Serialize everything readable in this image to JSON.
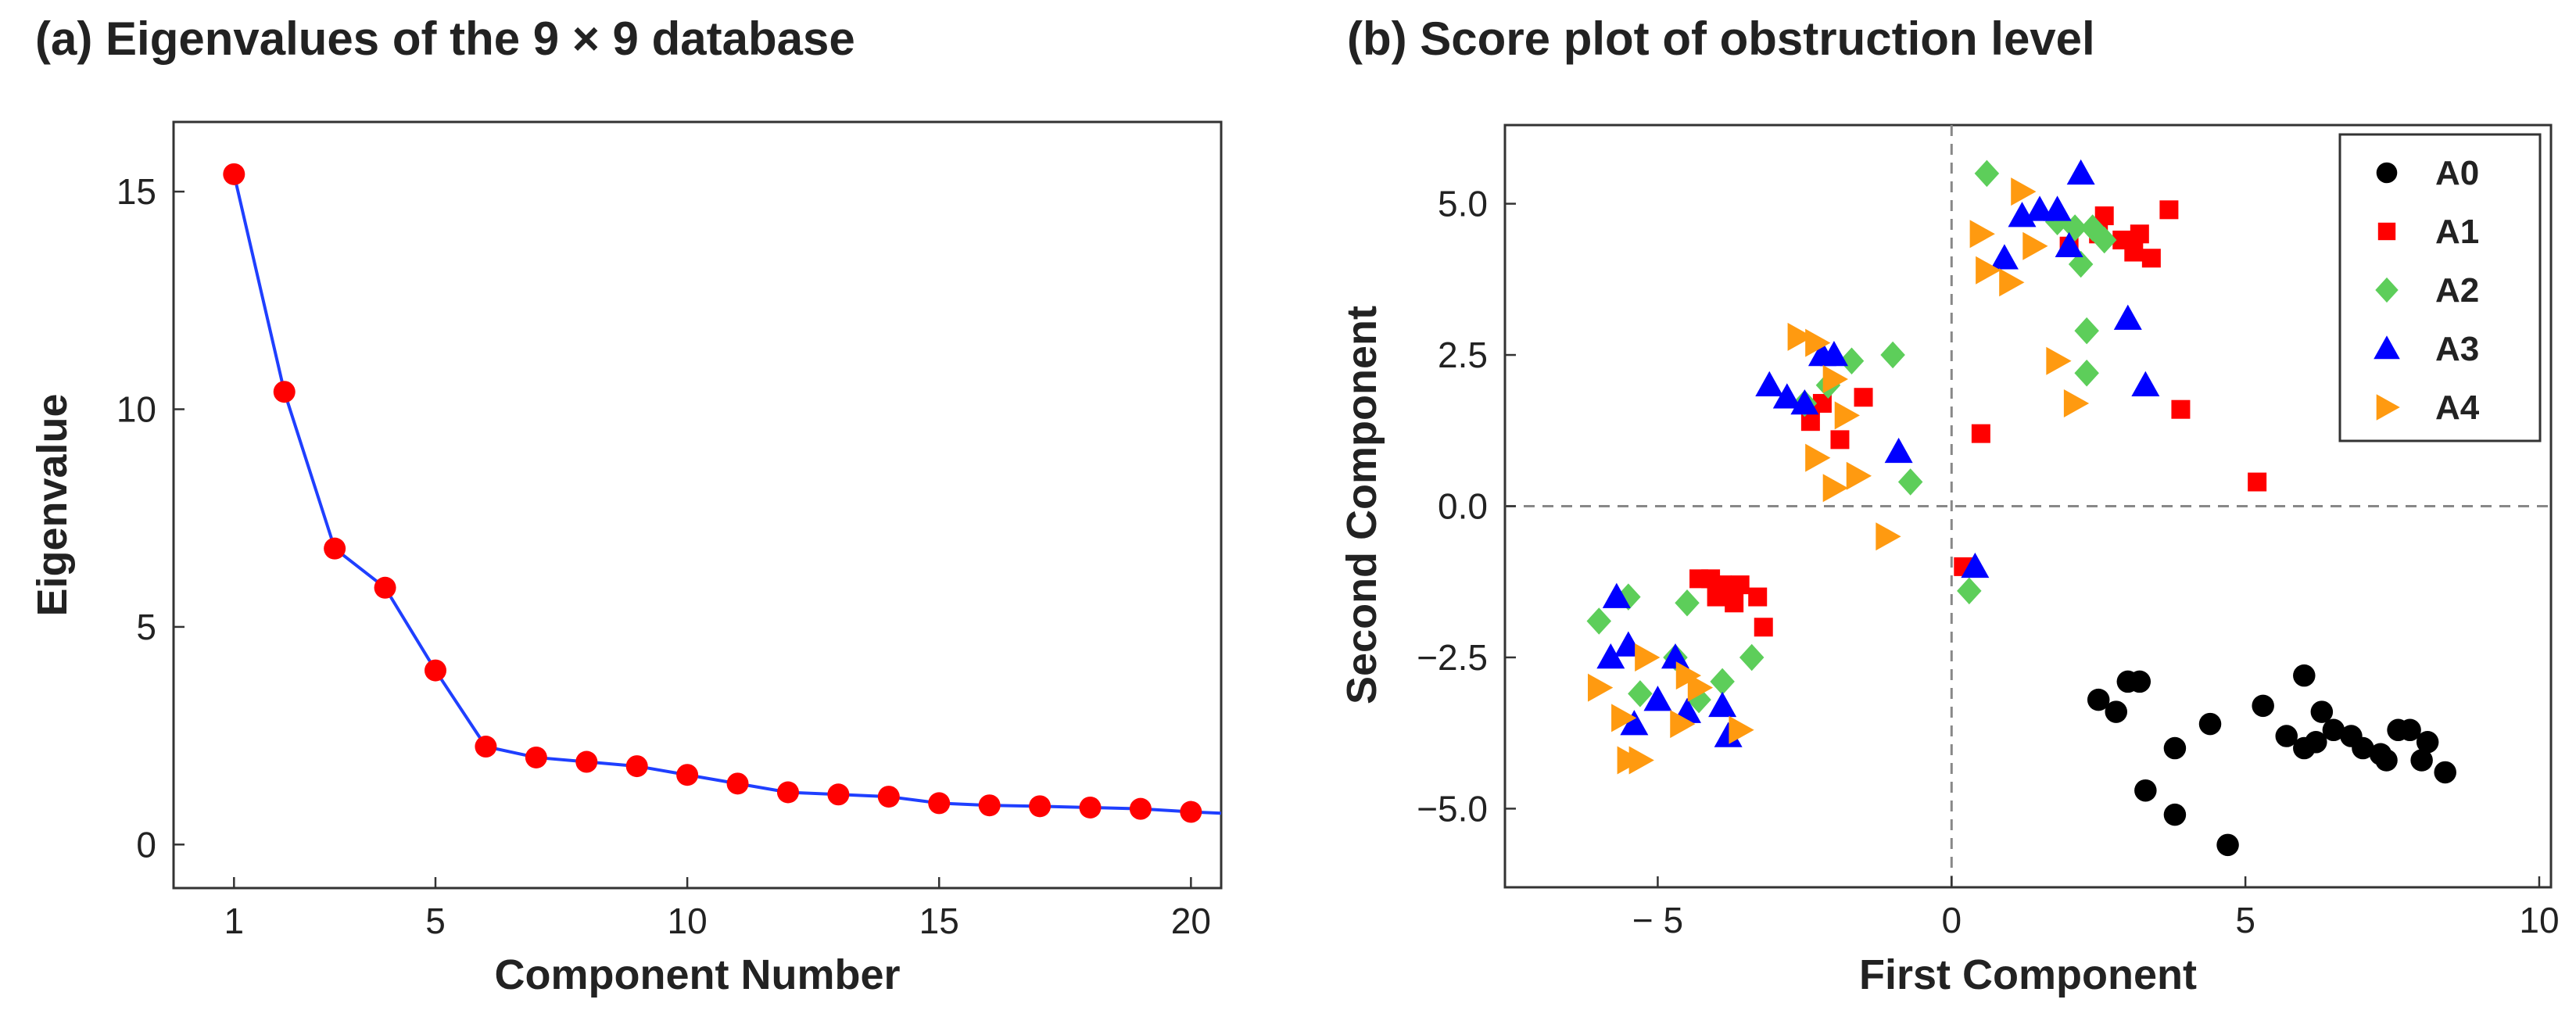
{
  "chart_data": [
    {
      "type": "line",
      "panel": "a",
      "title": "(a) Eigenvalues of the 9 × 9 database",
      "xlabel": "Component Number",
      "ylabel": "Eigenvalue",
      "xlim": [
        -0.2,
        20.6
      ],
      "ylim": [
        -1.0,
        16.6
      ],
      "xticks": [
        1,
        5,
        10,
        15,
        20
      ],
      "yticks": [
        0,
        5,
        10,
        15
      ],
      "line_color": "#1f3fff",
      "marker_color": "#ff0000",
      "x": [
        1,
        2,
        3,
        4,
        5,
        6,
        7,
        8,
        9,
        10,
        11,
        12,
        13,
        14,
        15,
        16,
        17,
        18,
        19,
        20
      ],
      "values": [
        15.4,
        10.4,
        6.8,
        5.9,
        4.0,
        2.25,
        2.0,
        1.9,
        1.8,
        1.6,
        1.4,
        1.2,
        1.15,
        1.1,
        0.95,
        0.9,
        0.88,
        0.85,
        0.82,
        0.75
      ],
      "tail_value": 0.72
    },
    {
      "type": "scatter",
      "panel": "b",
      "title": "(b) Score plot of obstruction level",
      "xlabel": "First Component",
      "ylabel": "Second Component",
      "xlim": [
        -7.6,
        10.2
      ],
      "ylim": [
        -6.3,
        6.3
      ],
      "xticks": [
        -5,
        0,
        5,
        10
      ],
      "xtick_labels": [
        "− 5",
        "0",
        "5",
        "10"
      ],
      "yticks": [
        -5.0,
        -2.5,
        0.0,
        2.5,
        5.0
      ],
      "ytick_labels": [
        "−5.0",
        "−2.5",
        "0.0",
        "2.5",
        "5.0"
      ],
      "zero_lines": true,
      "legend_position": "top-right",
      "series": [
        {
          "name": "A0",
          "marker": "circle",
          "color": "#000000",
          "points": [
            [
              2.5,
              -3.2
            ],
            [
              2.8,
              -3.4
            ],
            [
              3.0,
              -2.9
            ],
            [
              3.2,
              -2.9
            ],
            [
              3.3,
              -4.7
            ],
            [
              3.8,
              -4.0
            ],
            [
              3.8,
              -5.1
            ],
            [
              4.4,
              -3.6
            ],
            [
              4.7,
              -5.6
            ],
            [
              5.3,
              -3.3
            ],
            [
              5.7,
              -3.8
            ],
            [
              6.0,
              -2.8
            ],
            [
              6.0,
              -4.0
            ],
            [
              6.2,
              -3.9
            ],
            [
              6.3,
              -3.4
            ],
            [
              6.5,
              -3.7
            ],
            [
              6.8,
              -3.8
            ],
            [
              7.0,
              -4.0
            ],
            [
              7.3,
              -4.1
            ],
            [
              7.4,
              -4.2
            ],
            [
              7.6,
              -3.7
            ],
            [
              7.8,
              -3.7
            ],
            [
              8.0,
              -4.2
            ],
            [
              8.1,
              -3.9
            ],
            [
              8.4,
              -4.4
            ]
          ]
        },
        {
          "name": "A1",
          "marker": "square",
          "color": "#ff0000",
          "points": [
            [
              -4.3,
              -1.2
            ],
            [
              -4.1,
              -1.2
            ],
            [
              -4.0,
              -1.5
            ],
            [
              -3.9,
              -1.3
            ],
            [
              -3.6,
              -1.3
            ],
            [
              -3.7,
              -1.6
            ],
            [
              -3.2,
              -2.0
            ],
            [
              -3.3,
              -1.5
            ],
            [
              -2.4,
              1.4
            ],
            [
              -2.2,
              1.7
            ],
            [
              -1.9,
              1.1
            ],
            [
              -1.5,
              1.8
            ],
            [
              0.5,
              1.2
            ],
            [
              0.2,
              -1.0
            ],
            [
              2.0,
              4.3
            ],
            [
              2.5,
              4.5
            ],
            [
              2.6,
              4.8
            ],
            [
              2.9,
              4.4
            ],
            [
              3.1,
              4.2
            ],
            [
              3.2,
              4.5
            ],
            [
              3.7,
              4.9
            ],
            [
              3.4,
              4.1
            ],
            [
              3.9,
              1.6
            ],
            [
              5.2,
              0.4
            ]
          ]
        },
        {
          "name": "A2",
          "marker": "diamond",
          "color": "#5dce5a",
          "points": [
            [
              -6.0,
              -1.9
            ],
            [
              -5.5,
              -1.5
            ],
            [
              -5.3,
              -3.1
            ],
            [
              -4.7,
              -2.5
            ],
            [
              -4.5,
              -1.6
            ],
            [
              -4.3,
              -3.2
            ],
            [
              -3.9,
              -2.9
            ],
            [
              -3.4,
              -2.5
            ],
            [
              -2.5,
              1.7
            ],
            [
              -2.1,
              2.0
            ],
            [
              -1.7,
              2.4
            ],
            [
              -1.0,
              2.5
            ],
            [
              -0.7,
              0.4
            ],
            [
              0.3,
              -1.4
            ],
            [
              0.6,
              5.5
            ],
            [
              1.8,
              4.7
            ],
            [
              2.1,
              4.6
            ],
            [
              2.2,
              4.0
            ],
            [
              2.3,
              2.9
            ],
            [
              2.4,
              4.6
            ],
            [
              2.3,
              2.2
            ],
            [
              2.6,
              4.4
            ]
          ]
        },
        {
          "name": "A3",
          "marker": "triangle-up",
          "color": "#0000ff",
          "points": [
            [
              -5.7,
              -1.5
            ],
            [
              -5.8,
              -2.5
            ],
            [
              -5.5,
              -2.3
            ],
            [
              -5.4,
              -3.6
            ],
            [
              -5.0,
              -3.2
            ],
            [
              -4.5,
              -3.4
            ],
            [
              -4.7,
              -2.5
            ],
            [
              -3.9,
              -3.3
            ],
            [
              -3.8,
              -3.8
            ],
            [
              -3.1,
              2.0
            ],
            [
              -2.8,
              1.8
            ],
            [
              -2.5,
              1.7
            ],
            [
              -2.2,
              2.5
            ],
            [
              -2.0,
              2.5
            ],
            [
              -0.9,
              0.9
            ],
            [
              0.4,
              -1.0
            ],
            [
              0.9,
              4.1
            ],
            [
              1.2,
              4.8
            ],
            [
              1.5,
              4.9
            ],
            [
              1.8,
              4.9
            ],
            [
              2.0,
              4.3
            ],
            [
              2.2,
              5.5
            ],
            [
              3.0,
              3.1
            ],
            [
              3.3,
              2.0
            ]
          ]
        },
        {
          "name": "A4",
          "marker": "triangle-right",
          "color": "#ff9a10",
          "points": [
            [
              -6.0,
              -3.0
            ],
            [
              -5.6,
              -3.5
            ],
            [
              -5.5,
              -4.2
            ],
            [
              -5.3,
              -4.2
            ],
            [
              -5.2,
              -2.5
            ],
            [
              -4.5,
              -2.8
            ],
            [
              -4.6,
              -3.6
            ],
            [
              -4.3,
              -3.0
            ],
            [
              -3.6,
              -3.7
            ],
            [
              -2.6,
              2.8
            ],
            [
              -2.3,
              2.7
            ],
            [
              -2.0,
              2.1
            ],
            [
              -1.8,
              1.5
            ],
            [
              -2.3,
              0.8
            ],
            [
              -2.0,
              0.3
            ],
            [
              -1.6,
              0.5
            ],
            [
              -1.1,
              -0.5
            ],
            [
              0.5,
              4.5
            ],
            [
              0.6,
              3.9
            ],
            [
              1.0,
              3.7
            ],
            [
              1.2,
              5.2
            ],
            [
              1.4,
              4.3
            ],
            [
              1.8,
              2.4
            ],
            [
              2.1,
              1.7
            ]
          ]
        }
      ]
    }
  ]
}
